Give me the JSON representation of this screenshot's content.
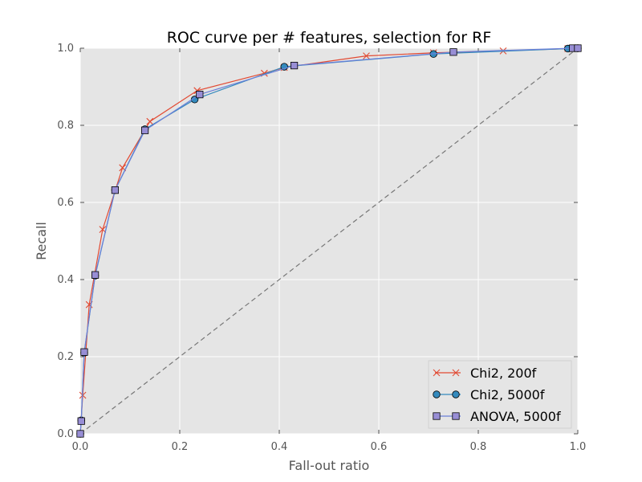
{
  "chart_data": {
    "type": "line",
    "title": "ROC curve per # features, selection for RF",
    "xlabel": "Fall-out ratio",
    "ylabel": "Recall",
    "xlim": [
      0.0,
      1.0
    ],
    "ylim": [
      0.0,
      1.0
    ],
    "x_ticks": [
      "0.0",
      "0.2",
      "0.4",
      "0.6",
      "0.8",
      "1.0"
    ],
    "y_ticks": [
      "0.0",
      "0.2",
      "0.4",
      "0.6",
      "0.8",
      "1.0"
    ],
    "grid": true,
    "legend_position": "bottom-right",
    "background": "#e5e5e5",
    "series": [
      {
        "name": "Chi2, 200f",
        "marker": "x",
        "color": "#e24a33",
        "x": [
          0.0,
          0.005,
          0.018,
          0.045,
          0.085,
          0.14,
          0.235,
          0.37,
          0.41,
          0.575,
          0.71,
          0.85,
          0.98,
          1.0
        ],
        "y": [
          0.0,
          0.1,
          0.335,
          0.53,
          0.69,
          0.81,
          0.89,
          0.935,
          0.95,
          0.98,
          0.988,
          0.993,
          0.999,
          1.0
        ]
      },
      {
        "name": "Chi2, 5000f",
        "marker": "circle",
        "color": "#348abd",
        "x": [
          0.0,
          0.002,
          0.008,
          0.03,
          0.07,
          0.13,
          0.23,
          0.41,
          0.71,
          0.98,
          1.0
        ],
        "y": [
          0.0,
          0.035,
          0.21,
          0.41,
          0.632,
          0.79,
          0.867,
          0.952,
          0.985,
          0.999,
          1.0
        ],
        "marker_face": "#348abd"
      },
      {
        "name": "ANOVA, 5000f",
        "marker": "square",
        "color": "#988ed5",
        "line_color": "#6a7fd8",
        "x": [
          0.0,
          0.002,
          0.008,
          0.03,
          0.07,
          0.13,
          0.24,
          0.43,
          0.75,
          0.99,
          1.0
        ],
        "y": [
          0.0,
          0.033,
          0.212,
          0.412,
          0.632,
          0.787,
          0.88,
          0.955,
          0.99,
          1.0,
          1.0
        ],
        "marker_face": "#988ed5"
      }
    ],
    "reference_line": {
      "x": [
        0.0,
        1.0
      ],
      "y": [
        0.0,
        1.0
      ],
      "color": "#777777",
      "style": "dashed"
    }
  }
}
